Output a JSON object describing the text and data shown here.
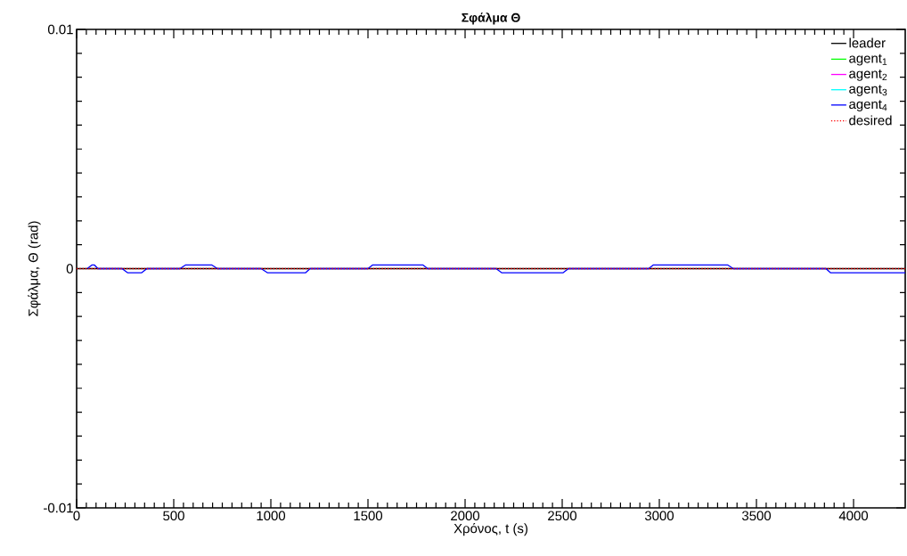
{
  "chart_data": {
    "type": "line",
    "title": "Σφάλμα Θ",
    "xlabel": "Χρόνος, t (s)",
    "ylabel": "Σφάλμα, Θ (rad)",
    "xlim": [
      0,
      4266
    ],
    "ylim": [
      -0.01,
      0.01
    ],
    "xticks": [
      0,
      500,
      1000,
      1500,
      2000,
      2500,
      3000,
      3500,
      4000
    ],
    "yticks": [
      -0.01,
      0,
      0.01
    ],
    "legend": "top right",
    "grid": false,
    "marker": "none",
    "series": [
      {
        "name": "leader",
        "color": "#000000",
        "x": [
          0,
          4266
        ],
        "values": [
          0,
          0
        ]
      },
      {
        "name": "agent$_{1}$",
        "color": "#00ff00",
        "values": [
          null
        ]
      },
      {
        "name": "agent$_{2}$",
        "color": "#ff00ff",
        "values": [
          null
        ]
      },
      {
        "name": "agent$_{3}$",
        "color": "#00ffff",
        "values": [
          null
        ]
      },
      {
        "name": "agent$_{4}$",
        "color": "#0000ff",
        "x": [
          55,
          78,
          92,
          110,
          234,
          262,
          335,
          362,
          532,
          560,
          697,
          725,
          950,
          982,
          1179,
          1202,
          1500,
          1523,
          1784,
          1807,
          2160,
          2188,
          2505,
          2532,
          2945,
          2968,
          3353,
          3381,
          3858,
          3881,
          4266
        ],
        "values": [
          0,
          0.00015,
          0.00015,
          0,
          0,
          -0.00017,
          -0.00017,
          0,
          0,
          0.00015,
          0.00015,
          0,
          0,
          -0.00017,
          -0.00017,
          0,
          0,
          0.00015,
          0.00015,
          0,
          0,
          -0.00017,
          -0.00017,
          0,
          0,
          0.00015,
          0.00015,
          0,
          0,
          -0.00017,
          -0.00017
        ]
      },
      {
        "name": "desired",
        "color": "#ff0000",
        "line_style": "dotted",
        "x": [
          0,
          4266
        ],
        "values": [
          0,
          0
        ]
      }
    ]
  }
}
